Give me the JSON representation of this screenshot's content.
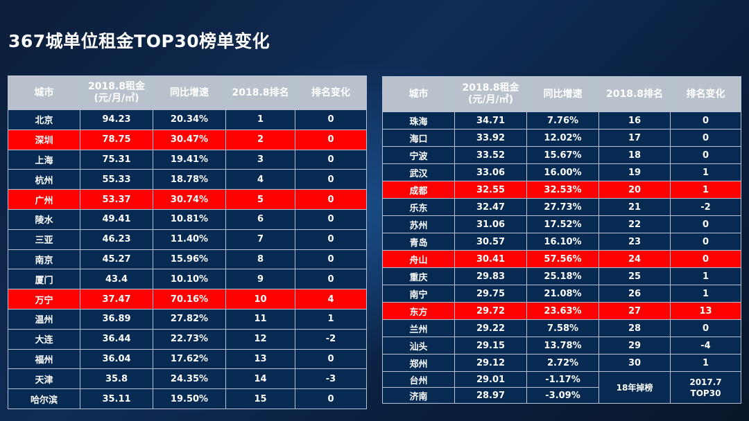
{
  "title": "367城单位租金TOP30榜单变化",
  "headers": {
    "city": "城市",
    "rent_line1": "2018.8租金",
    "rent_line2": "(元/月/㎡)",
    "yoy": "同比增速",
    "rank": "2018.8排名",
    "change": "排名变化"
  },
  "left_rows": [
    {
      "city": "北京",
      "rent": "94.23",
      "yoy": "20.34%",
      "rank": "1",
      "change": "0",
      "highlight": false
    },
    {
      "city": "深圳",
      "rent": "78.75",
      "yoy": "30.47%",
      "rank": "2",
      "change": "0",
      "highlight": true
    },
    {
      "city": "上海",
      "rent": "75.31",
      "yoy": "19.41%",
      "rank": "3",
      "change": "0",
      "highlight": false
    },
    {
      "city": "杭州",
      "rent": "55.33",
      "yoy": "18.78%",
      "rank": "4",
      "change": "0",
      "highlight": false
    },
    {
      "city": "广州",
      "rent": "53.37",
      "yoy": "30.74%",
      "rank": "5",
      "change": "0",
      "highlight": true
    },
    {
      "city": "陵水",
      "rent": "49.41",
      "yoy": "10.81%",
      "rank": "6",
      "change": "0",
      "highlight": false
    },
    {
      "city": "三亚",
      "rent": "46.23",
      "yoy": "11.40%",
      "rank": "7",
      "change": "0",
      "highlight": false
    },
    {
      "city": "南京",
      "rent": "45.27",
      "yoy": "15.96%",
      "rank": "8",
      "change": "0",
      "highlight": false
    },
    {
      "city": "厦门",
      "rent": "43.4",
      "yoy": "10.10%",
      "rank": "9",
      "change": "0",
      "highlight": false
    },
    {
      "city": "万宁",
      "rent": "37.47",
      "yoy": "70.16%",
      "rank": "10",
      "change": "4",
      "highlight": true
    },
    {
      "city": "温州",
      "rent": "36.89",
      "yoy": "27.82%",
      "rank": "11",
      "change": "1",
      "highlight": false
    },
    {
      "city": "大连",
      "rent": "36.44",
      "yoy": "22.73%",
      "rank": "12",
      "change": "-2",
      "highlight": false
    },
    {
      "city": "福州",
      "rent": "36.04",
      "yoy": "17.62%",
      "rank": "13",
      "change": "0",
      "highlight": false
    },
    {
      "city": "天津",
      "rent": "35.8",
      "yoy": "24.35%",
      "rank": "14",
      "change": "-3",
      "highlight": false
    },
    {
      "city": "哈尔滨",
      "rent": "35.11",
      "yoy": "19.50%",
      "rank": "15",
      "change": "0",
      "highlight": false
    }
  ],
  "right_rows": [
    {
      "city": "珠海",
      "rent": "34.71",
      "yoy": "7.76%",
      "rank": "16",
      "change": "0",
      "highlight": false
    },
    {
      "city": "海口",
      "rent": "33.92",
      "yoy": "12.02%",
      "rank": "17",
      "change": "0",
      "highlight": false
    },
    {
      "city": "宁波",
      "rent": "33.52",
      "yoy": "15.67%",
      "rank": "18",
      "change": "0",
      "highlight": false
    },
    {
      "city": "武汉",
      "rent": "33.06",
      "yoy": "16.00%",
      "rank": "19",
      "change": "1",
      "highlight": false
    },
    {
      "city": "成都",
      "rent": "32.55",
      "yoy": "32.53%",
      "rank": "20",
      "change": "1",
      "highlight": true
    },
    {
      "city": "乐东",
      "rent": "32.47",
      "yoy": "27.73%",
      "rank": "21",
      "change": "-2",
      "highlight": false
    },
    {
      "city": "苏州",
      "rent": "31.06",
      "yoy": "17.52%",
      "rank": "22",
      "change": "0",
      "highlight": false
    },
    {
      "city": "青岛",
      "rent": "30.57",
      "yoy": "16.10%",
      "rank": "23",
      "change": "0",
      "highlight": false
    },
    {
      "city": "舟山",
      "rent": "30.41",
      "yoy": "57.56%",
      "rank": "24",
      "change": "0",
      "highlight": true
    },
    {
      "city": "重庆",
      "rent": "29.83",
      "yoy": "25.18%",
      "rank": "25",
      "change": "1",
      "highlight": false
    },
    {
      "city": "南宁",
      "rent": "29.75",
      "yoy": "21.08%",
      "rank": "26",
      "change": "1",
      "highlight": false
    },
    {
      "city": "东方",
      "rent": "29.72",
      "yoy": "23.63%",
      "rank": "27",
      "change": "13",
      "highlight": true
    },
    {
      "city": "兰州",
      "rent": "29.22",
      "yoy": "7.58%",
      "rank": "28",
      "change": "0",
      "highlight": false
    },
    {
      "city": "汕头",
      "rent": "29.15",
      "yoy": "13.78%",
      "rank": "29",
      "change": "-4",
      "highlight": false
    },
    {
      "city": "郑州",
      "rent": "29.12",
      "yoy": "2.72%",
      "rank": "30",
      "change": "1",
      "highlight": false
    }
  ],
  "dropped_rows": [
    {
      "city": "台州",
      "rent": "29.01",
      "yoy": "-1.17%"
    },
    {
      "city": "济南",
      "rent": "28.97",
      "yoy": "-3.09%"
    }
  ],
  "dropped_rank_note": "18年掉榜",
  "dropped_change_note_line1": "2017.7",
  "dropped_change_note_line2": "TOP30",
  "colors": {
    "highlight": "#ff0000",
    "row_bg": "#072a52",
    "header_bg": "#b9c2cc"
  }
}
